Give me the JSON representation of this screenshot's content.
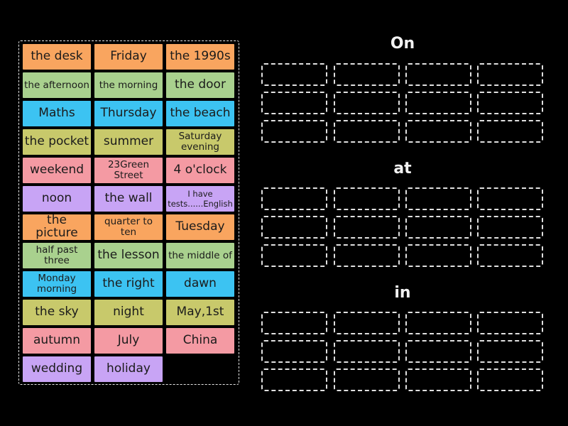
{
  "colors": {
    "orange": "#f9a55f",
    "green": "#a9d18e",
    "blue": "#3cc3f2",
    "khaki": "#c8c96b",
    "pink": "#f49aa3",
    "purple": "#c8a4f5"
  },
  "tiles": [
    {
      "label": "the desk",
      "color": "orange"
    },
    {
      "label": "Friday",
      "color": "orange"
    },
    {
      "label": "the 1990s",
      "color": "orange"
    },
    {
      "label": "the afternoon",
      "color": "green",
      "size": "t2"
    },
    {
      "label": "the morning",
      "color": "green",
      "size": "t2"
    },
    {
      "label": "the door",
      "color": "green"
    },
    {
      "label": "Maths",
      "color": "blue"
    },
    {
      "label": "Thursday",
      "color": "blue"
    },
    {
      "label": "the beach",
      "color": "blue"
    },
    {
      "label": "the pocket",
      "color": "khaki"
    },
    {
      "label": "summer",
      "color": "khaki"
    },
    {
      "label": "Saturday evening",
      "color": "khaki",
      "size": "t2"
    },
    {
      "label": "weekend",
      "color": "pink"
    },
    {
      "label": "23Green Street",
      "color": "pink",
      "size": "t2"
    },
    {
      "label": "4 o'clock",
      "color": "pink"
    },
    {
      "label": "noon",
      "color": "purple"
    },
    {
      "label": "the wall",
      "color": "purple"
    },
    {
      "label": "I have tests......English",
      "color": "purple",
      "size": "t3"
    },
    {
      "label": "the picture",
      "color": "orange"
    },
    {
      "label": "quarter to ten",
      "color": "orange",
      "size": "t2"
    },
    {
      "label": "Tuesday",
      "color": "orange"
    },
    {
      "label": "half past three",
      "color": "green",
      "size": "t2"
    },
    {
      "label": "the lesson",
      "color": "green"
    },
    {
      "label": "the middle of",
      "color": "green",
      "size": "t2"
    },
    {
      "label": "Monday morning",
      "color": "blue",
      "size": "t2"
    },
    {
      "label": "the right",
      "color": "blue"
    },
    {
      "label": "dawn",
      "color": "blue"
    },
    {
      "label": "the sky",
      "color": "khaki"
    },
    {
      "label": "night",
      "color": "khaki"
    },
    {
      "label": "May,1st",
      "color": "khaki"
    },
    {
      "label": "autumn",
      "color": "pink"
    },
    {
      "label": "July",
      "color": "pink"
    },
    {
      "label": "China",
      "color": "pink"
    },
    {
      "label": "wedding",
      "color": "purple"
    },
    {
      "label": "holiday",
      "color": "purple"
    }
  ],
  "groups": [
    {
      "title": "On"
    },
    {
      "title": "at"
    },
    {
      "title": "in"
    }
  ]
}
